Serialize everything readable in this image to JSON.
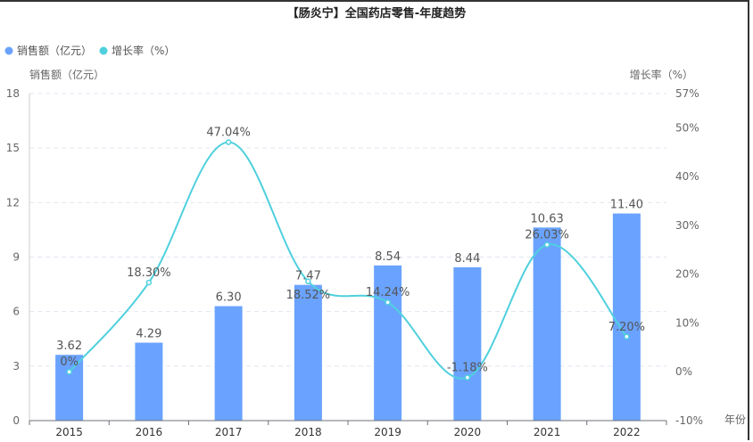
{
  "chart_data": {
    "type": "bar+line",
    "title": "【肠炎宁】全国药店零售-年度趋势",
    "categories": [
      "2015",
      "2016",
      "2017",
      "2018",
      "2019",
      "2020",
      "2021",
      "2022"
    ],
    "xlabel": "年份",
    "series": [
      {
        "name": "销售额（亿元）",
        "type": "bar",
        "axis": "left",
        "color": "#6aa3ff",
        "values": [
          3.62,
          4.29,
          6.3,
          7.47,
          8.54,
          8.44,
          10.63,
          11.4
        ],
        "labels": [
          "3.62",
          "4.29",
          "6.30",
          "7.47",
          "8.54",
          "8.44",
          "10.63",
          "11.40"
        ]
      },
      {
        "name": "增长率（%）",
        "type": "line",
        "axis": "right",
        "color": "#4fd0dd",
        "values": [
          0,
          18.3,
          47.04,
          18.52,
          14.24,
          -1.18,
          26.03,
          7.2
        ],
        "labels": [
          "0%",
          "18.30%",
          "47.04%",
          "18.52%",
          "14.24%",
          "-1.18%",
          "26.03%",
          "7.20%"
        ]
      }
    ],
    "y_left": {
      "label": "销售额（亿元）",
      "ylim": [
        0,
        18
      ],
      "ticks": [
        "0",
        "3",
        "6",
        "9",
        "12",
        "15",
        "18"
      ]
    },
    "y_right": {
      "label": "增长率（%）",
      "ylim": [
        -10,
        57
      ],
      "ticks": [
        "-10%",
        "0%",
        "10%",
        "20%",
        "30%",
        "40%",
        "50%",
        "57%"
      ],
      "tick_values": [
        -10,
        0,
        10,
        20,
        30,
        40,
        50,
        57
      ]
    },
    "legend_position": "top-left",
    "grid": true
  }
}
